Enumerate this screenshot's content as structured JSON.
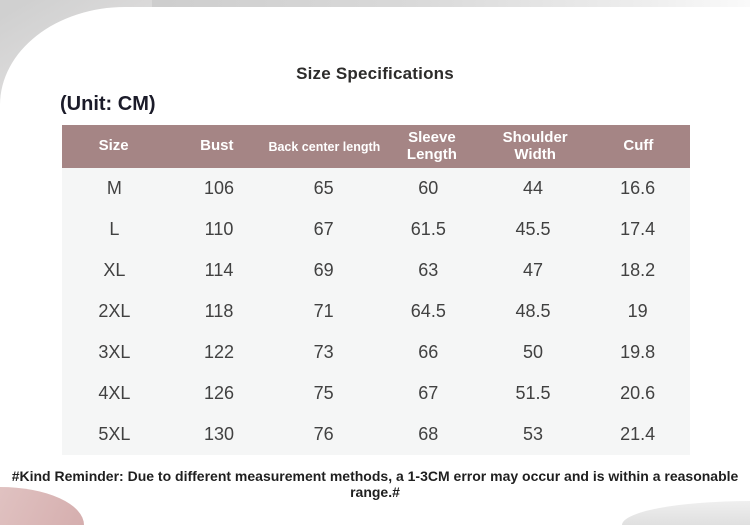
{
  "page": {
    "title": "Size Specifications",
    "unit_label": "(Unit: CM)",
    "footer_note": "#Kind Reminder: Due to different measurement methods, a 1-3CM error may occur and is within a reasonable range.#"
  },
  "table": {
    "columns": [
      "Size",
      "Bust",
      "Back center length",
      "Sleeve Length",
      "Shoulder Width",
      "Cuff"
    ],
    "rows": [
      [
        "M",
        "106",
        "65",
        "60",
        "44",
        "16.6"
      ],
      [
        "L",
        "110",
        "67",
        "61.5",
        "45.5",
        "17.4"
      ],
      [
        "XL",
        "114",
        "69",
        "63",
        "47",
        "18.2"
      ],
      [
        "2XL",
        "118",
        "71",
        "64.5",
        "48.5",
        "19"
      ],
      [
        "3XL",
        "122",
        "73",
        "66",
        "50",
        "19.8"
      ],
      [
        "4XL",
        "126",
        "75",
        "67",
        "51.5",
        "20.6"
      ],
      [
        "5XL",
        "130",
        "76",
        "68",
        "53",
        "21.4"
      ]
    ]
  },
  "colors": {
    "header_bg": "#a58585",
    "header_text": "#ffffff",
    "table_body_bg": "#f5f6f6",
    "page_bg": "#ffffff",
    "accent_pink": "#d5aeae",
    "corner_gray": "#d0d0d0"
  }
}
